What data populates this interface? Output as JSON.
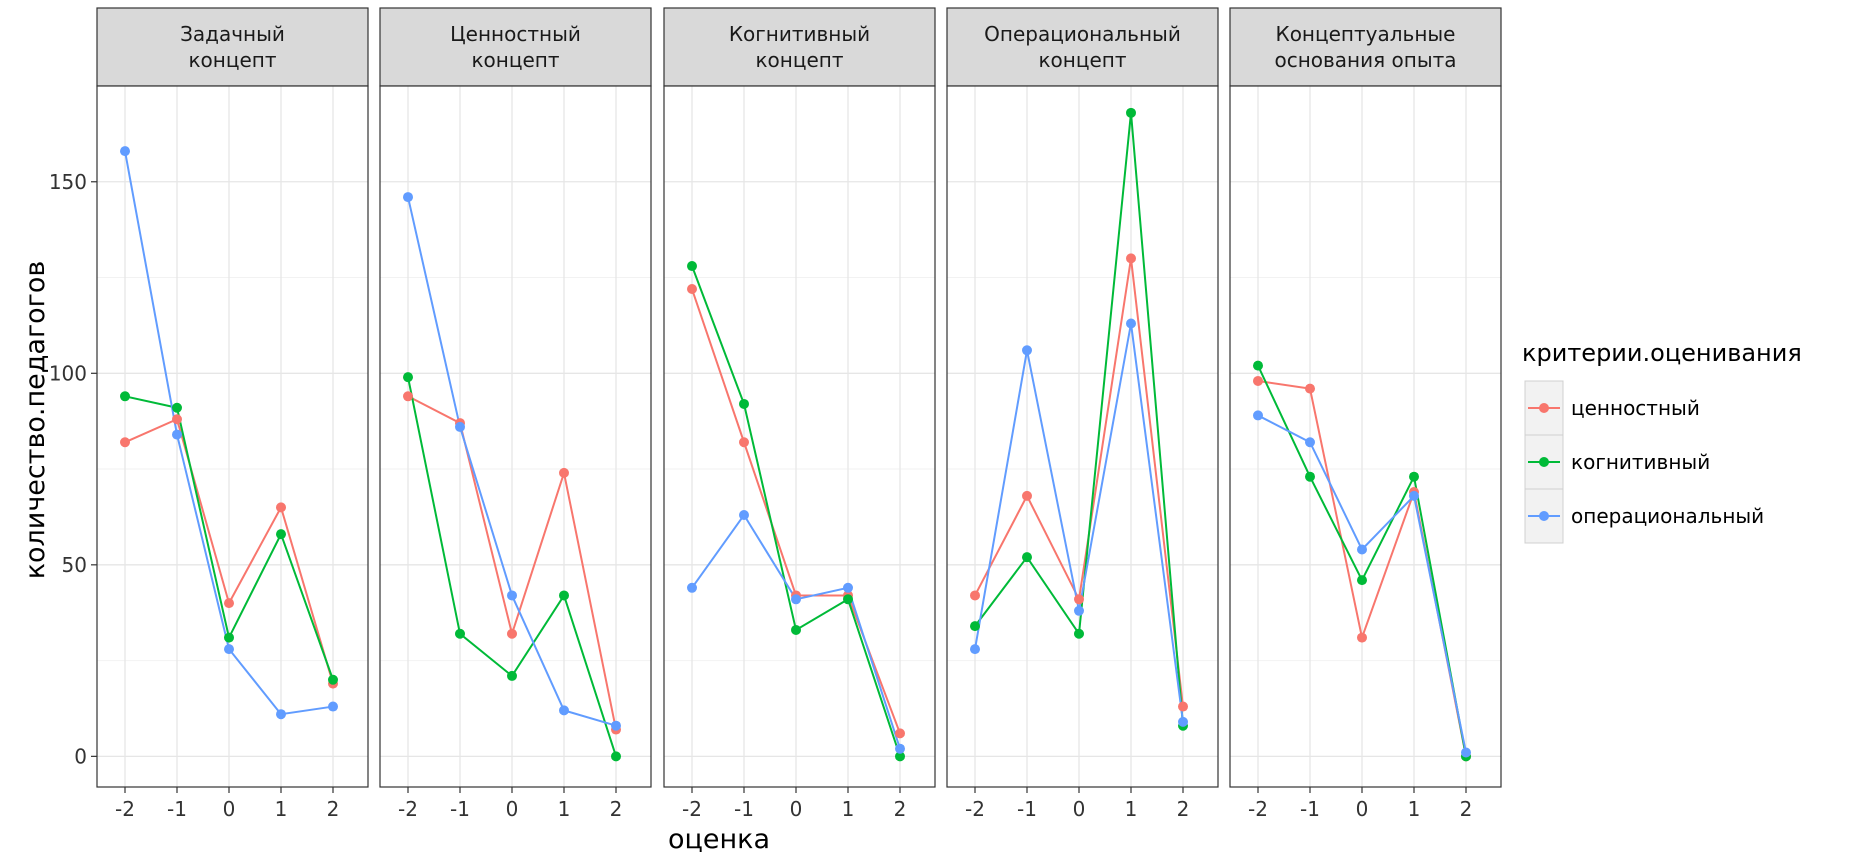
{
  "chart_data": {
    "type": "line",
    "x": [
      "-2",
      "-1",
      "0",
      "1",
      "2"
    ],
    "xlabel": "оценка",
    "ylabel": "количество.педагогов",
    "ylim": [
      -8,
      175
    ],
    "y_ticks": [
      "0",
      "50",
      "100",
      "150"
    ],
    "y_tick_values": [
      0,
      50,
      100,
      150
    ],
    "grid": true,
    "legend": {
      "title": "критерии.оценивания",
      "position": "right",
      "entries": [
        "ценностный",
        "когнитивный",
        "операциональный"
      ]
    },
    "colors": {
      "ценностный": "#F8766D",
      "когнитивный": "#00BA38",
      "операциональный": "#619CFF"
    },
    "panels": [
      {
        "label_lines": [
          "Задачный",
          "концепт"
        ],
        "series": [
          {
            "name": "ценностный",
            "values": [
              82,
              88,
              40,
              65,
              19
            ]
          },
          {
            "name": "когнитивный",
            "values": [
              94,
              91,
              31,
              58,
              20
            ]
          },
          {
            "name": "операциональный",
            "values": [
              158,
              84,
              28,
              11,
              13
            ]
          }
        ]
      },
      {
        "label_lines": [
          "Ценностный",
          "концепт"
        ],
        "series": [
          {
            "name": "ценностный",
            "values": [
              94,
              87,
              32,
              74,
              7
            ]
          },
          {
            "name": "когнитивный",
            "values": [
              99,
              32,
              21,
              42,
              0
            ]
          },
          {
            "name": "операциональный",
            "values": [
              146,
              86,
              42,
              12,
              8
            ]
          }
        ]
      },
      {
        "label_lines": [
          "Когнитивный",
          "концепт"
        ],
        "series": [
          {
            "name": "ценностный",
            "values": [
              122,
              82,
              42,
              42,
              6
            ]
          },
          {
            "name": "когнитивный",
            "values": [
              128,
              92,
              33,
              41,
              0
            ]
          },
          {
            "name": "операциональный",
            "values": [
              44,
              63,
              41,
              44,
              2
            ]
          }
        ]
      },
      {
        "label_lines": [
          "Операциональный",
          "концепт"
        ],
        "series": [
          {
            "name": "ценностный",
            "values": [
              42,
              68,
              41,
              130,
              13
            ]
          },
          {
            "name": "когнитивный",
            "values": [
              34,
              52,
              32,
              168,
              8
            ]
          },
          {
            "name": "операциональный",
            "values": [
              28,
              106,
              38,
              113,
              9
            ]
          }
        ]
      },
      {
        "label_lines": [
          "Концептуальные",
          "основания опыта"
        ],
        "series": [
          {
            "name": "ценностный",
            "values": [
              98,
              96,
              31,
              69,
              0
            ]
          },
          {
            "name": "когнитивный",
            "values": [
              102,
              73,
              46,
              73,
              0
            ]
          },
          {
            "name": "операциональный",
            "values": [
              89,
              82,
              54,
              68,
              1
            ]
          }
        ]
      }
    ]
  }
}
